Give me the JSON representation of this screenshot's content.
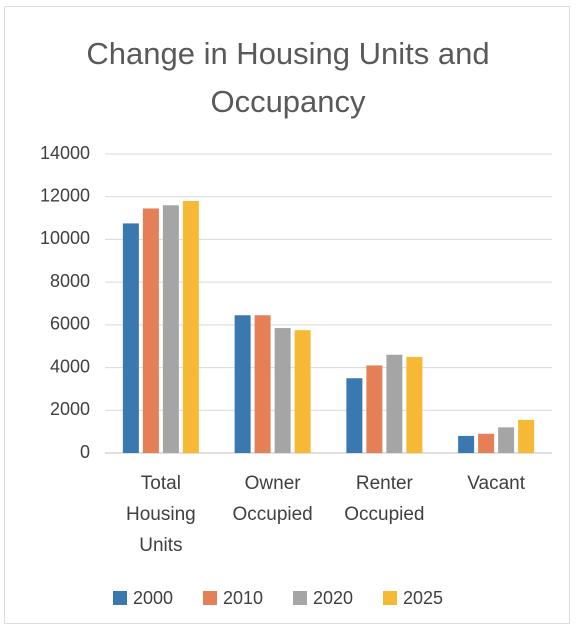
{
  "chart_data": {
    "type": "bar",
    "title": "Change in Housing Units and Occupancy",
    "categories": [
      "Total Housing Units",
      "Owner Occupied",
      "Renter Occupied",
      "Vacant"
    ],
    "series": [
      {
        "name": "2000",
        "color": "#3a78b0",
        "values": [
          10750,
          6450,
          3500,
          800
        ]
      },
      {
        "name": "2010",
        "color": "#e57f55",
        "values": [
          11450,
          6450,
          4100,
          900
        ]
      },
      {
        "name": "2020",
        "color": "#a5a5a5",
        "values": [
          11600,
          5850,
          4600,
          1200
        ]
      },
      {
        "name": "2025",
        "color": "#f6b935",
        "values": [
          11800,
          5750,
          4500,
          1550
        ]
      }
    ],
    "ylim": [
      0,
      14000
    ],
    "yticks": [
      0,
      2000,
      4000,
      6000,
      8000,
      10000,
      12000,
      14000
    ],
    "grid": true,
    "legend": "bottom"
  }
}
